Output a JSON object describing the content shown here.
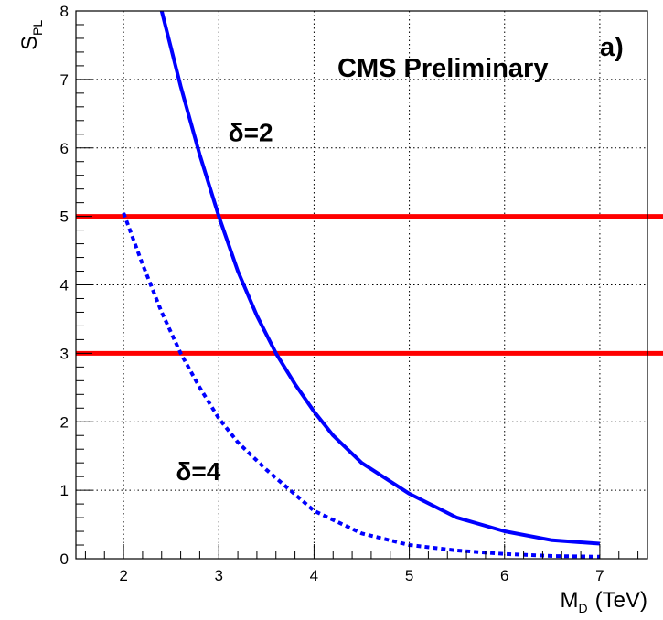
{
  "chart_data": {
    "type": "line",
    "title": "CMS Preliminary",
    "panel_label": "a)",
    "xlabel": {
      "main": "M",
      "sub": "D",
      "unit": "(TeV)"
    },
    "ylabel": {
      "main": "S",
      "sub": "PL"
    },
    "xlim": [
      1.5,
      7.5
    ],
    "ylim": [
      0,
      8
    ],
    "xticks": [
      2,
      3,
      4,
      5,
      6,
      7
    ],
    "yticks": [
      0,
      1,
      2,
      3,
      4,
      5,
      6,
      7,
      8
    ],
    "grid": true,
    "reference_lines": [
      {
        "y": 5,
        "color": "#ff0000"
      },
      {
        "y": 3,
        "color": "#ff0000"
      }
    ],
    "series": [
      {
        "label": "δ=2",
        "style": "solid",
        "color": "#0000ff",
        "x": [
          2.4,
          2.6,
          2.8,
          3.0,
          3.2,
          3.4,
          3.6,
          3.8,
          4.0,
          4.2,
          4.5,
          5.0,
          5.5,
          6.0,
          6.5,
          7.0
        ],
        "y": [
          8.0,
          6.9,
          5.9,
          5.0,
          4.2,
          3.55,
          3.0,
          2.55,
          2.15,
          1.8,
          1.4,
          0.95,
          0.6,
          0.4,
          0.27,
          0.22
        ]
      },
      {
        "label": "δ=4",
        "style": "dotted",
        "color": "#0000ff",
        "x": [
          2.0,
          2.2,
          2.4,
          2.6,
          2.8,
          3.0,
          3.2,
          3.5,
          4.0,
          4.5,
          5.0,
          5.5,
          6.0,
          6.5,
          7.0
        ],
        "y": [
          5.05,
          4.3,
          3.6,
          3.0,
          2.5,
          2.05,
          1.7,
          1.3,
          0.7,
          0.37,
          0.2,
          0.12,
          0.07,
          0.04,
          0.03
        ]
      }
    ],
    "annotations": [
      {
        "text": "δ=2",
        "x": 3.1,
        "y": 6.1
      },
      {
        "text": "δ=4",
        "x": 2.55,
        "y": 1.15
      }
    ]
  }
}
